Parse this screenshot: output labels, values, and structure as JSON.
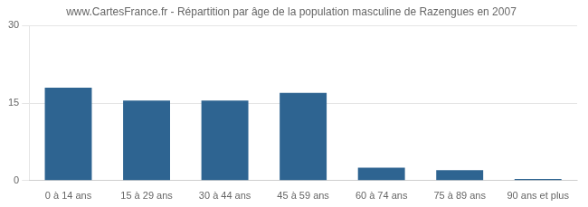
{
  "chart_data": {
    "type": "bar",
    "title": "www.CartesFrance.fr - Répartition par âge de la population masculine de Razengues en 2007",
    "categories": [
      "0 à 14 ans",
      "15 à 29 ans",
      "30 à 44 ans",
      "45 à 59 ans",
      "60 à 74 ans",
      "75 à 89 ans",
      "90 ans et plus"
    ],
    "values": [
      18,
      15.5,
      15.5,
      17,
      2.5,
      2.0,
      0.3
    ],
    "color": "#2e6491",
    "ylim": [
      0,
      30
    ],
    "yticks": [
      0,
      15,
      30
    ],
    "grid": true
  }
}
